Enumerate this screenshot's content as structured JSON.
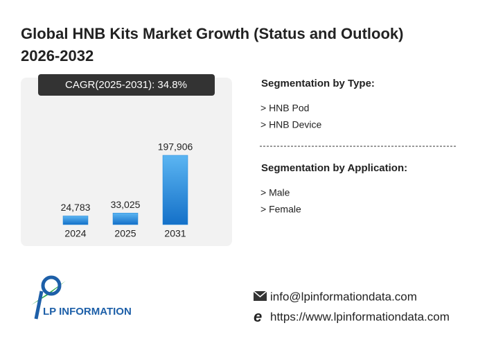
{
  "chart_data": {
    "type": "bar",
    "title": [
      "Global HNB Kits Market Growth (Status and Outlook)",
      "2026-2032"
    ],
    "annotation": "CAGR(2025-2031):  34.8%",
    "categories": [
      "2024",
      "2025",
      "2031"
    ],
    "values": [
      24783,
      33025,
      197906
    ],
    "value_labels": [
      "24,783",
      "33,025",
      "197,906"
    ],
    "color": "#1f86d8"
  },
  "segments": [
    {
      "title": "Segmentation by Type:",
      "items": [
        "> HNB Pod",
        "> HNB Device"
      ]
    },
    {
      "title": "Segmentation by Application:",
      "items": [
        "> Male",
        "> Female"
      ]
    }
  ],
  "logo": "LP INFORMATION",
  "contact": {
    "email": "info@lpinformationdata.com",
    "url": "https://www.lpinformationdata.com"
  }
}
